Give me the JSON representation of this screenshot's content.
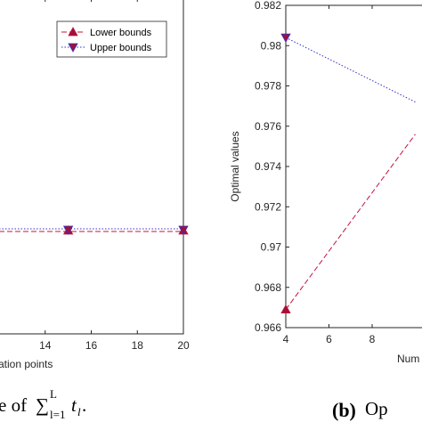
{
  "chart_data": [
    {
      "type": "line",
      "xlabel": "ation points",
      "x": [
        15,
        20
      ],
      "xlim": [
        12,
        20
      ],
      "xticks": [
        14,
        16,
        18,
        20
      ],
      "series": [
        {
          "name": "Lower bounds",
          "values": [
            0.5,
            0.5
          ],
          "color": "#c0143c",
          "style": "dashed",
          "marker": "triangle-up"
        },
        {
          "name": "Upper bounds",
          "values": [
            0.5,
            0.5
          ],
          "color": "#3030c8",
          "style": "dotted",
          "marker": "triangle-down"
        }
      ],
      "legend": "top-right",
      "caption": "e of ∑_{l=1}^{L} t_l."
    },
    {
      "type": "line",
      "ylabel": "Optimal values",
      "xlabel": "Num",
      "ylim": [
        0.966,
        0.982
      ],
      "yticks": [
        "0.966",
        "0.968",
        "0.97",
        "0.972",
        "0.974",
        "0.976",
        "0.978",
        "0.98",
        "0.982"
      ],
      "xticks": [
        "4",
        "6",
        "8"
      ],
      "x": [
        4,
        10
      ],
      "series": [
        {
          "name": "Lower bounds",
          "values": [
            0.9669,
            0.9756
          ],
          "color": "#c0143c",
          "style": "dashed",
          "marker": "triangle-up"
        },
        {
          "name": "Upper bounds",
          "values": [
            0.9804,
            0.9772
          ],
          "color": "#3030c8",
          "style": "dotted",
          "marker": "triangle-down"
        }
      ],
      "caption_label": "(b)",
      "caption_text": "Op"
    }
  ],
  "legend": {
    "lower_label": "Lower bounds",
    "upper_label": "Upper bounds"
  },
  "colors": {
    "lower": "#c0143c",
    "upper": "#3030c8",
    "marker_fill": "#a0103a"
  }
}
